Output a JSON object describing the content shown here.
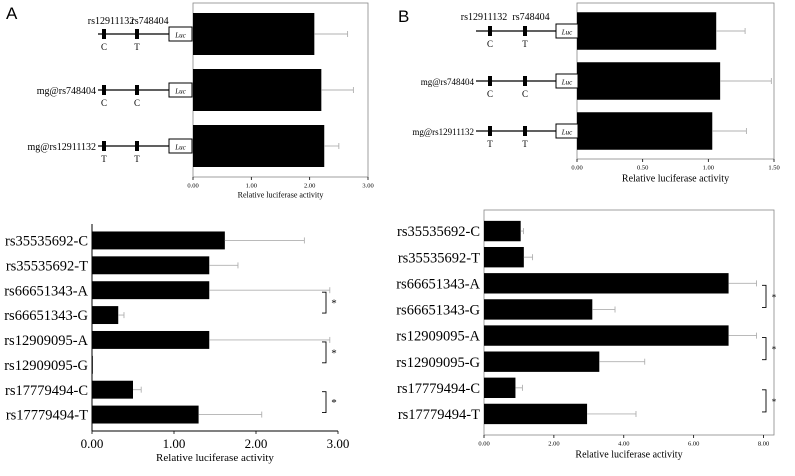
{
  "panels": [
    {
      "letter": "A"
    },
    {
      "letter": "B"
    }
  ],
  "colors": {
    "bar": "#000000",
    "error": "#b0b0b0",
    "frame": "#888888"
  },
  "constructs": {
    "A": {
      "header_snps": [
        "rs12911132",
        "rs748404"
      ],
      "luc_label": "Luc",
      "rows": [
        {
          "label": "",
          "alleles": [
            "C",
            "T"
          ]
        },
        {
          "label": "mg@rs748404",
          "alleles": [
            "C",
            "C"
          ]
        },
        {
          "label": "mg@rs12911132",
          "alleles": [
            "T",
            "T"
          ]
        }
      ]
    },
    "B": {
      "header_snps": [
        "rs12911132",
        "rs748404"
      ],
      "luc_label": "Luc",
      "rows": [
        {
          "label": "",
          "alleles": [
            "C",
            "T"
          ]
        },
        {
          "label": "mg@rs748404",
          "alleles": [
            "C",
            "C"
          ]
        },
        {
          "label": "mg@rs12911132",
          "alleles": [
            "T",
            "T"
          ]
        }
      ]
    }
  },
  "chart_data": [
    {
      "id": "A-top",
      "type": "bar",
      "orientation": "horizontal",
      "xlabel": "Relative luciferase activity",
      "xlim": [
        0,
        3
      ],
      "ticks": [
        "0.00",
        "1.00",
        "2.00",
        "3.00"
      ],
      "values": [
        2.08,
        2.2,
        2.25
      ],
      "errors": [
        0.57,
        0.55,
        0.25
      ]
    },
    {
      "id": "A-bottom",
      "type": "bar",
      "orientation": "horizontal",
      "xlabel": "Relative luciferase activity",
      "xlim": [
        0,
        3
      ],
      "ticks": [
        "0.00",
        "1.00",
        "2.00",
        "3.00"
      ],
      "categories": [
        "rs35535692-C",
        "rs35535692-T",
        "rs66651343-A",
        "rs66651343-G",
        "rs12909095-A",
        "rs12909095-G",
        "rs17779494-C",
        "rs17779494-T"
      ],
      "values": [
        1.62,
        1.43,
        1.43,
        0.32,
        1.43,
        0.01,
        0.5,
        1.3
      ],
      "errors": [
        0.97,
        0.35,
        1.47,
        0.07,
        1.47,
        0,
        0.1,
        0.77
      ],
      "significance": [
        {
          "rows": [
            2,
            3
          ],
          "label": "*"
        },
        {
          "rows": [
            4,
            5
          ],
          "label": "*"
        },
        {
          "rows": [
            6,
            7
          ],
          "label": "*"
        }
      ]
    },
    {
      "id": "B-top",
      "type": "bar",
      "orientation": "horizontal",
      "xlabel": "Relative luciferase activity",
      "xlim": [
        0,
        1.5
      ],
      "ticks": [
        "0.00",
        "0.50",
        "1.00",
        "1.50"
      ],
      "values": [
        1.06,
        1.09,
        1.03
      ],
      "errors": [
        0.22,
        0.39,
        0.26
      ]
    },
    {
      "id": "B-bottom",
      "type": "bar",
      "orientation": "horizontal",
      "xlabel": "Relative luciferase activity",
      "xlim": [
        0,
        8.3
      ],
      "ticks": [
        "0.00",
        "2.00",
        "4.00",
        "6.00",
        "8.00"
      ],
      "categories": [
        "rs35535692-C",
        "rs35535692-T",
        "rs66651343-A",
        "rs66651343-G",
        "rs12909095-A",
        "rs12909095-G",
        "rs17779494-C",
        "rs17779494-T"
      ],
      "values": [
        1.05,
        1.14,
        7.0,
        3.1,
        7.0,
        3.3,
        0.9,
        2.95
      ],
      "errors": [
        0.08,
        0.25,
        0.8,
        0.65,
        0.8,
        1.3,
        0.2,
        1.4
      ],
      "significance": [
        {
          "rows": [
            2,
            3
          ],
          "label": "*"
        },
        {
          "rows": [
            4,
            5
          ],
          "label": "*"
        },
        {
          "rows": [
            6,
            7
          ],
          "label": "*"
        }
      ]
    }
  ]
}
